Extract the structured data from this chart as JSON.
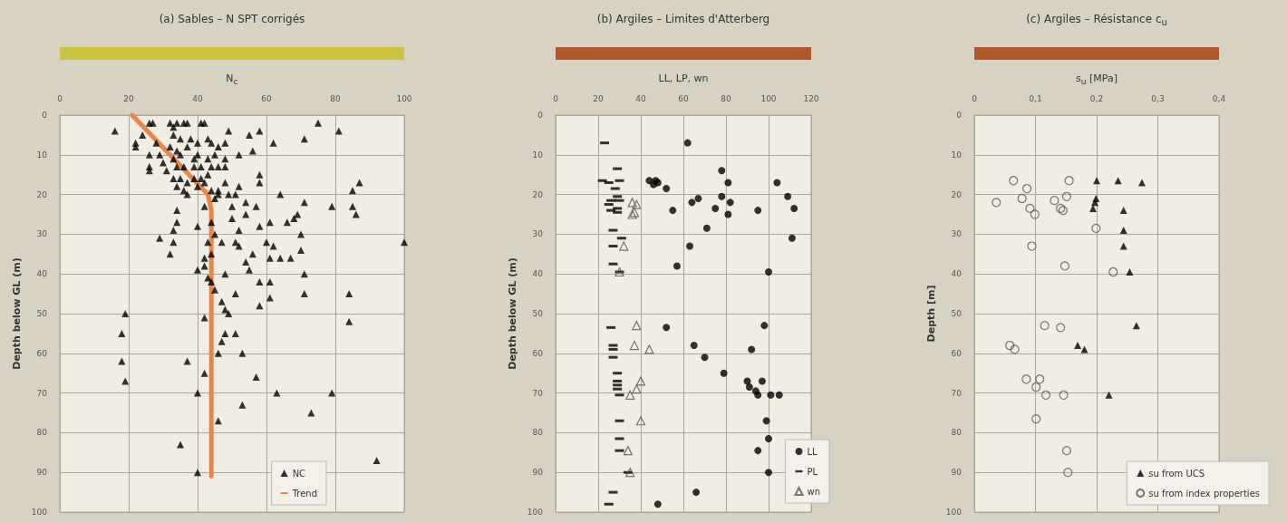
{
  "chart_data": [
    {
      "type": "scatter",
      "title": "(a)  Sables – N SPT corrigés",
      "xlabel": "N$_{c}$",
      "ylabel": "Depth below GL (m)",
      "xlim": [
        0,
        100
      ],
      "xticks": [
        0,
        20,
        40,
        60,
        80,
        100
      ],
      "ylim": [
        100,
        0
      ],
      "yticks": [
        0,
        10,
        20,
        30,
        40,
        50,
        60,
        70,
        80,
        90,
        100
      ],
      "grid": true,
      "legend": "bottom right",
      "series": [
        {
          "name": "NC",
          "color": "#000000",
          "marker": "triangle",
          "x": [
            16,
            75,
            81,
            71,
            62,
            58,
            55,
            56,
            49,
            52,
            87,
            85,
            79,
            85,
            86,
            100,
            71,
            64,
            58,
            58,
            54,
            57,
            54,
            61,
            66,
            68,
            69,
            70,
            58,
            60,
            62,
            70,
            67,
            64,
            61,
            56,
            54,
            52,
            51,
            52,
            50,
            50,
            51,
            52,
            49,
            48,
            46,
            45,
            47,
            45,
            44,
            42,
            40,
            34,
            34,
            33,
            33,
            29,
            32,
            43,
            44,
            42,
            22,
            22,
            24,
            26,
            27,
            26,
            26,
            26,
            28,
            29,
            30,
            31,
            32,
            33,
            34,
            36,
            37,
            41,
            42,
            33,
            35,
            38,
            43,
            32,
            34,
            37,
            40,
            44,
            46,
            48,
            33,
            35,
            39,
            40,
            43,
            45,
            48,
            48,
            34,
            36,
            39,
            41,
            44,
            46,
            33,
            35,
            37,
            39,
            41,
            43,
            34,
            36,
            37,
            40,
            42,
            44,
            46,
            42,
            40,
            43,
            44,
            45,
            48,
            51,
            47,
            48,
            49,
            55,
            71,
            58,
            61,
            61,
            58,
            71,
            84,
            84,
            19,
            18,
            18,
            19,
            37,
            42,
            42,
            48,
            47,
            46,
            51,
            53,
            57,
            40,
            63,
            79,
            53,
            73,
            46,
            35,
            40,
            92
          ],
          "values": [
            4,
            2,
            4,
            6,
            7,
            4,
            5,
            9,
            4,
            10,
            17,
            19,
            23,
            23,
            25,
            32,
            22,
            20,
            17,
            15,
            22,
            23,
            25,
            27,
            27,
            26,
            25,
            30,
            28,
            32,
            33,
            34,
            36,
            36,
            36,
            35,
            37,
            33,
            32,
            29,
            26,
            23,
            20,
            18,
            20,
            17,
            19,
            21,
            32,
            30,
            27,
            23,
            28,
            27,
            24,
            29,
            32,
            31,
            35,
            32,
            35,
            36,
            7,
            8,
            5,
            2,
            2,
            10,
            13,
            14,
            7,
            10,
            12,
            14,
            2,
            3,
            2,
            2,
            2,
            2,
            2,
            5,
            6,
            6,
            6,
            8,
            9,
            8,
            7,
            7,
            8,
            7,
            11,
            10,
            11,
            10,
            11,
            10,
            11,
            13,
            13,
            13,
            13,
            13,
            13,
            13,
            16,
            16,
            17,
            16,
            16,
            15,
            18,
            19,
            20,
            18,
            17,
            19,
            20,
            38,
            39,
            41,
            42,
            44,
            40,
            45,
            47,
            49,
            50,
            39,
            40,
            42,
            42,
            46,
            48,
            45,
            45,
            52,
            50,
            55,
            62,
            67,
            62,
            65,
            51,
            55,
            57,
            60,
            55,
            60,
            66,
            70,
            70,
            70,
            73,
            75,
            77,
            83,
            90,
            87
          ]
        },
        {
          "name": "Trend",
          "type": "line",
          "color": "#e8874a",
          "marker": "none",
          "x": [
            21,
            43,
            44,
            44
          ],
          "values": [
            0,
            20,
            24,
            91
          ]
        }
      ]
    },
    {
      "type": "scatter",
      "title": "(b)  Argiles – Limites d'Atterberg",
      "xlabel": "LL, LP, wn",
      "ylabel": "Depth below GL (m)",
      "xlim": [
        0,
        120
      ],
      "xticks": [
        0,
        20,
        40,
        60,
        80,
        100,
        120
      ],
      "ylim": [
        100,
        0
      ],
      "yticks": [
        0,
        10,
        20,
        30,
        40,
        50,
        60,
        70,
        80,
        90,
        100
      ],
      "grid": true,
      "legend": "bottom right",
      "series": [
        {
          "name": "LL",
          "color": "#000000",
          "marker": "circle",
          "x": [
            62,
            78,
            81,
            104,
            44,
            47,
            46,
            48,
            52,
            78,
            109,
            67,
            64,
            82,
            75,
            112,
            95,
            81,
            55,
            71,
            111,
            63,
            57,
            100,
            52,
            98,
            65,
            92,
            70,
            79,
            90,
            97,
            91,
            94,
            95,
            101,
            105,
            99,
            100,
            95,
            100,
            66,
            48
          ],
          "values": [
            7,
            14,
            17,
            17,
            16.5,
            16.5,
            17.5,
            17,
            18.5,
            20.5,
            20.5,
            21,
            22,
            22,
            23.5,
            23.5,
            24,
            25,
            24,
            28.5,
            31,
            33,
            38,
            39.5,
            53.5,
            53,
            58,
            59,
            61,
            65,
            67,
            67,
            68.5,
            69.5,
            70.5,
            70.5,
            70.5,
            77,
            81.5,
            84.5,
            90,
            95,
            98
          ]
        },
        {
          "name": "PL",
          "color": "#000000",
          "marker": "square",
          "x": [
            23,
            29,
            22,
            25,
            30,
            28,
            29,
            26,
            30,
            25,
            29,
            26,
            29,
            27,
            31,
            27,
            27,
            30,
            26,
            27,
            27,
            27,
            29,
            29,
            29,
            29,
            30,
            30,
            30,
            30,
            34,
            27,
            25
          ],
          "values": [
            7,
            13.5,
            16.5,
            17,
            16.5,
            18.5,
            20.5,
            21.5,
            21.5,
            22.5,
            23.5,
            24,
            24.5,
            29,
            31,
            33,
            37.5,
            39.5,
            53.5,
            58,
            59,
            61,
            65,
            67,
            68,
            69,
            70.5,
            77,
            81.5,
            84.5,
            90,
            95,
            98
          ]
        },
        {
          "name": "wn",
          "color": "#555555",
          "marker": "triangle-open",
          "x": [
            36,
            38,
            37,
            36,
            32,
            30,
            38,
            37,
            44,
            40,
            38,
            35,
            40,
            34,
            35
          ],
          "values": [
            22,
            22.5,
            24.5,
            25,
            33,
            39.5,
            53,
            58,
            59,
            67,
            69,
            70.5,
            77,
            84.5,
            90
          ]
        }
      ]
    },
    {
      "type": "scatter",
      "title": "(c)  Argiles – Résistance c$_{u}$",
      "xlabel": "s$_{u}$ [MPa]",
      "ylabel": "Depth [m]",
      "xlim": [
        0,
        0.4
      ],
      "xticks": [
        {
          "value": 0,
          "label": "0"
        },
        {
          "value": 0.1,
          "label": "0,1"
        },
        {
          "value": 0.2,
          "label": "0,2"
        },
        {
          "value": 0.3,
          "label": "0,3"
        },
        {
          "value": 0.4,
          "label": "0,4"
        }
      ],
      "ylim": [
        100,
        0
      ],
      "yticks": [
        0,
        10,
        20,
        30,
        40,
        50,
        60,
        70,
        80,
        90,
        100
      ],
      "grid": true,
      "legend": "bottom right",
      "series": [
        {
          "name": "su from UCS",
          "color": "#000000",
          "marker": "triangle",
          "x": [
            0.2,
            0.235,
            0.274,
            0.199,
            0.197,
            0.194,
            0.244,
            0.244,
            0.244,
            0.254,
            0.265,
            0.169,
            0.18,
            0.22
          ],
          "values": [
            16.5,
            16.5,
            17,
            21,
            22,
            23.5,
            24,
            29,
            33,
            39.5,
            53,
            58,
            59,
            70.5
          ]
        },
        {
          "name": "su from index properties",
          "color": "#555555",
          "marker": "circle-open",
          "x": [
            0.064,
            0.155,
            0.086,
            0.078,
            0.151,
            0.036,
            0.131,
            0.091,
            0.099,
            0.141,
            0.145,
            0.199,
            0.094,
            0.148,
            0.227,
            0.115,
            0.141,
            0.058,
            0.066,
            0.085,
            0.107,
            0.101,
            0.117,
            0.146,
            0.101,
            0.151,
            0.153
          ],
          "values": [
            16.5,
            16.5,
            18.5,
            21,
            20.5,
            22,
            21.5,
            23.5,
            25,
            23.5,
            24,
            28.5,
            33,
            38,
            39.5,
            53,
            53.5,
            58,
            59,
            66.5,
            66.5,
            68.5,
            70.5,
            70.5,
            76.5,
            84.5,
            90
          ]
        }
      ]
    }
  ]
}
